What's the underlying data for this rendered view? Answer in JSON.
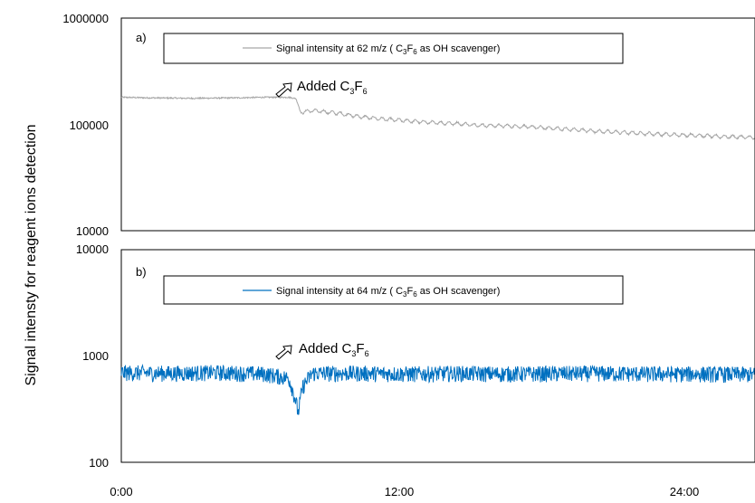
{
  "chart_data": {
    "type": "line",
    "ylabel": "Signal intensty for reagent ions detection",
    "x_tick_labels": [
      "0:00",
      "12:00",
      "24:00"
    ],
    "x_range_hours": [
      0,
      26.5
    ],
    "panels": [
      {
        "label": "a)",
        "legend": {
          "prefix": "Signal intensity at 62 m/z (",
          "C": "C",
          "sub1": "3",
          "F": "F",
          "sub2": "6",
          "suffix": "as OH scavenger)"
        },
        "annotation": {
          "text": "Added C",
          "sub1": "3",
          "F": "F",
          "sub2": "6",
          "event_time_hours": 7.3
        },
        "y_scale": "log",
        "ylim": [
          10000,
          1000000
        ],
        "y_tick_labels": [
          "1000000",
          "100000",
          "10000"
        ],
        "color": "#a6a6a6",
        "series": [
          {
            "x_hours": [
              0,
              1,
              2,
              3,
              4,
              5,
              6,
              7,
              7.3,
              7.5,
              8,
              9,
              10,
              11,
              12,
              13,
              14,
              15,
              16,
              17,
              18,
              19,
              20,
              21,
              22,
              23,
              24,
              25,
              26,
              26.5
            ],
            "values": [
              180000,
              178000,
              177000,
              176000,
              177000,
              178000,
              180000,
              180000,
              175000,
              130000,
              135000,
              128000,
              118000,
              112000,
              108000,
              104000,
              102000,
              98000,
              97000,
              95000,
              92000,
              89000,
              86000,
              84000,
              82000,
              80000,
              79000,
              77000,
              76000,
              75000
            ]
          }
        ]
      },
      {
        "label": "b)",
        "legend": {
          "prefix": "Signal intensity at 64 m/z (",
          "C": "C",
          "sub1": "3",
          "F": "F",
          "sub2": "6",
          "suffix": "as OH scavenger)"
        },
        "annotation": {
          "text": "Added C",
          "sub1": "3",
          "F": "F",
          "sub2": "6",
          "event_time_hours": 7.3
        },
        "y_scale": "log",
        "ylim": [
          100,
          10000
        ],
        "y_tick_labels": [
          "10000",
          "1000",
          "100"
        ],
        "color": "#0070c0",
        "series": [
          {
            "x_hours": [
              0,
              2,
              4,
              6,
              7,
              7.2,
              7.4,
              7.6,
              8,
              10,
              12,
              14,
              16,
              18,
              20,
              22,
              24,
              26,
              26.5
            ],
            "values": [
              700,
              690,
              700,
              680,
              620,
              450,
              290,
              520,
              690,
              690,
              680,
              690,
              680,
              685,
              690,
              680,
              680,
              675,
              670
            ]
          }
        ]
      }
    ]
  }
}
